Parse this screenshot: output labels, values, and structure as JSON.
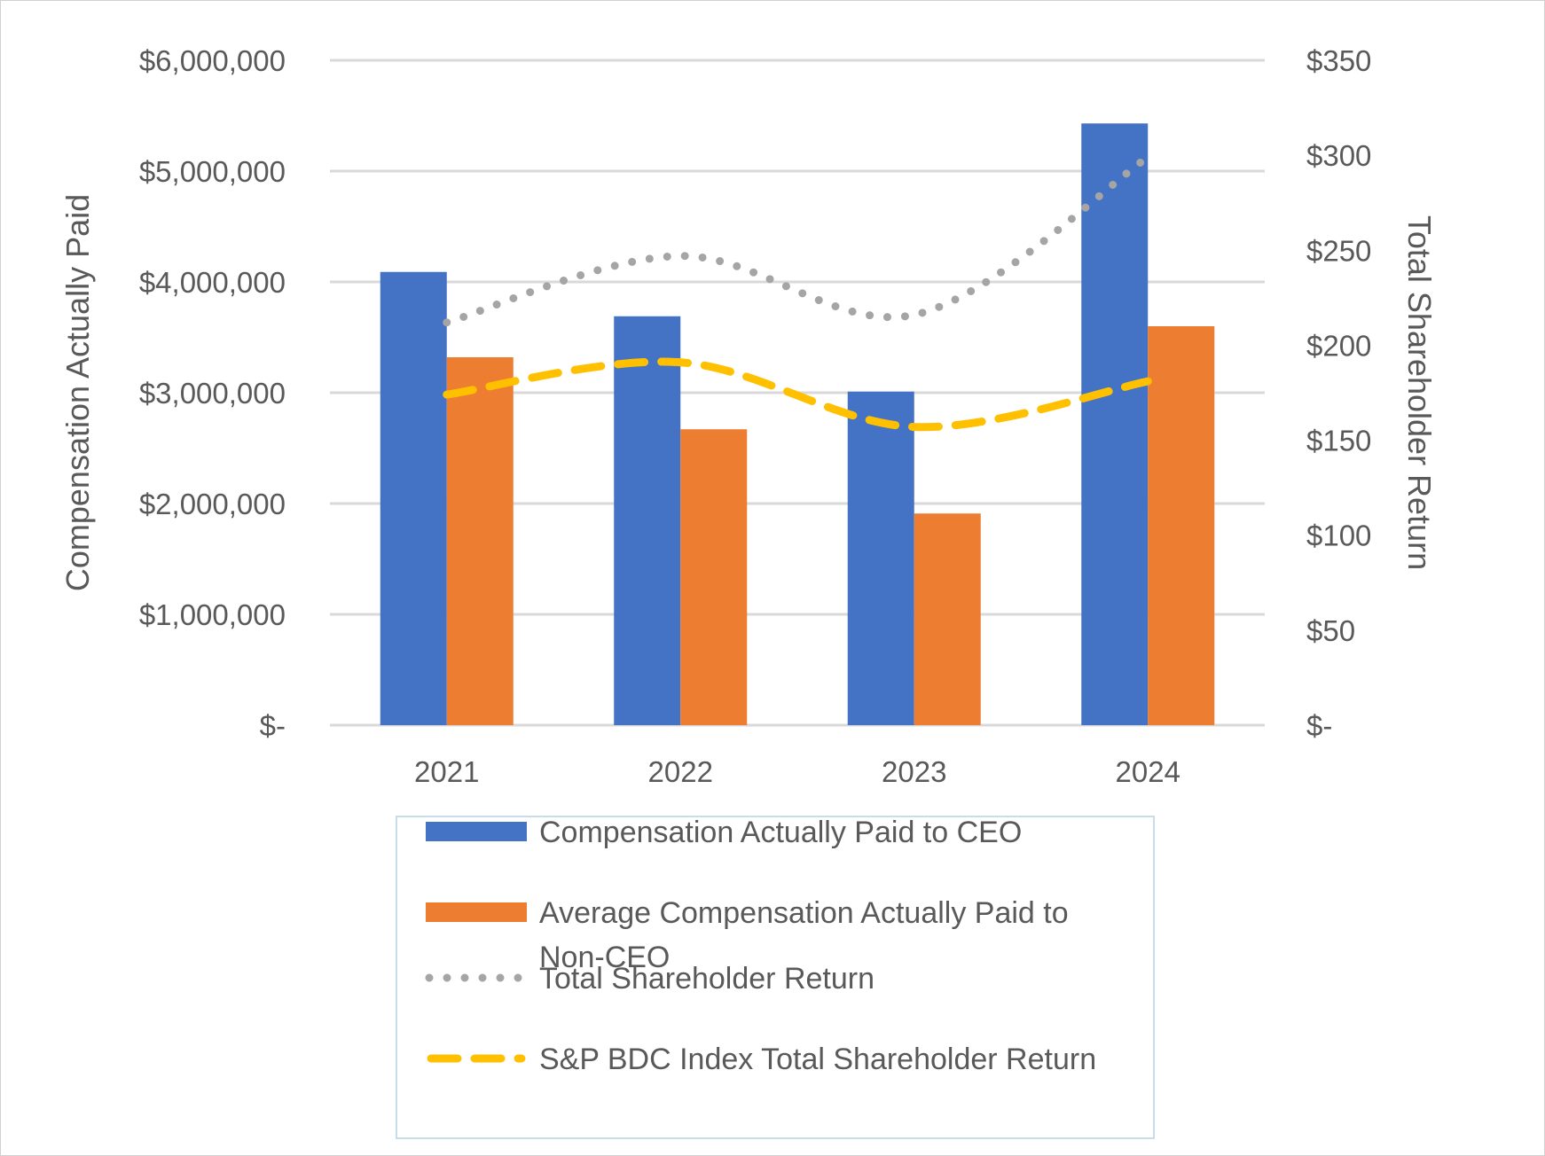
{
  "chart_data": {
    "type": "bar",
    "categories": [
      "2021",
      "2022",
      "2023",
      "2024"
    ],
    "series": [
      {
        "name": "Compensation Actually Paid to CEO",
        "kind": "bar",
        "axis": "left",
        "color": "#4472C4",
        "values": [
          4090000,
          3690000,
          3010000,
          5430000
        ]
      },
      {
        "name": "Average Compensation Actually Paid to Non-CEO",
        "kind": "bar",
        "axis": "left",
        "color": "#ED7D31",
        "values": [
          3320000,
          2670000,
          1910000,
          3600000
        ]
      },
      {
        "name": "Total Shareholder Return",
        "kind": "line",
        "style": "dotted",
        "axis": "right",
        "color": "#A5A5A5",
        "values": [
          212,
          247,
          216,
          299
        ]
      },
      {
        "name": "S&P BDC Index Total Shareholder Return",
        "kind": "line",
        "style": "dashed",
        "axis": "right",
        "color": "#FFC000",
        "values": [
          174,
          191,
          157,
          181
        ]
      }
    ],
    "y_left": {
      "title": "Compensation Actually Paid",
      "min": 0,
      "max": 6000000,
      "ticks": [
        0,
        1000000,
        2000000,
        3000000,
        4000000,
        5000000,
        6000000
      ],
      "tick_labels": [
        "$-",
        "$1,000,000",
        "$2,000,000",
        "$3,000,000",
        "$4,000,000",
        "$5,000,000",
        "$6,000,000"
      ]
    },
    "y_right": {
      "title": "Total Shareholder Return",
      "min": 0,
      "max": 350,
      "ticks": [
        0,
        50,
        100,
        150,
        200,
        250,
        300,
        350
      ],
      "tick_labels": [
        "$-",
        "$50",
        "$100",
        "$150",
        "$200",
        "$250",
        "$300",
        "$350"
      ]
    },
    "grid": true,
    "legend_position": "bottom"
  },
  "legend": {
    "items": [
      {
        "lines": [
          "Compensation Actually Paid to CEO"
        ],
        "swatch": "bar",
        "color": "#4472C4"
      },
      {
        "lines": [
          "Average Compensation Actually Paid to",
          "Non-CEO"
        ],
        "swatch": "bar",
        "color": "#ED7D31"
      },
      {
        "lines": [
          "Total Shareholder Return"
        ],
        "swatch": "dotted",
        "color": "#A5A5A5"
      },
      {
        "lines": [
          "S&P BDC Index Total Shareholder Return"
        ],
        "swatch": "dashed",
        "color": "#FFC000"
      }
    ]
  }
}
